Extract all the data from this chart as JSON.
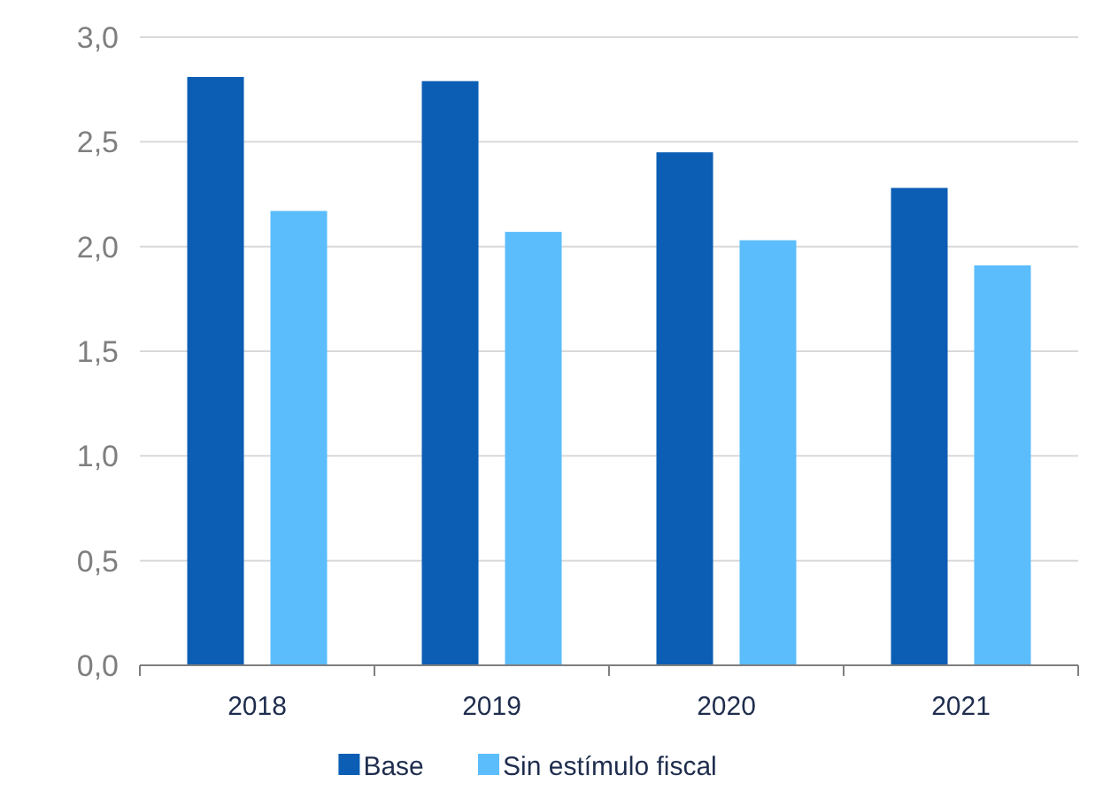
{
  "chart_data": {
    "type": "bar",
    "categories": [
      "2018",
      "2019",
      "2020",
      "2021"
    ],
    "series": [
      {
        "name": "Base",
        "color": "#0b5eb4",
        "values": [
          2.81,
          2.79,
          2.45,
          2.28
        ]
      },
      {
        "name": "Sin estímulo fiscal",
        "color": "#5bbdfc",
        "values": [
          2.17,
          2.07,
          2.03,
          1.91
        ]
      }
    ],
    "ylim": [
      0,
      3
    ],
    "yticks": [
      {
        "value": 0,
        "label": "0,0"
      },
      {
        "value": 0.5,
        "label": "0,5"
      },
      {
        "value": 1,
        "label": "1,0"
      },
      {
        "value": 1.5,
        "label": "1,5"
      },
      {
        "value": 2,
        "label": "2,0"
      },
      {
        "value": 2.5,
        "label": "2,5"
      },
      {
        "value": 3,
        "label": "3,0"
      }
    ],
    "grid": "y",
    "legend": "bottom"
  }
}
